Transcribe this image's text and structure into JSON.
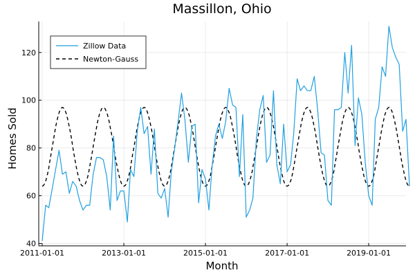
{
  "chart_data": {
    "type": "line",
    "title": "Massillon, Ohio",
    "xlabel": "Month",
    "ylabel": "Homes Sold",
    "x_axis": {
      "type": "date",
      "range": [
        "2010-12-01",
        "2019-12-01"
      ],
      "ticks": [
        "2011-01-01",
        "2013-01-01",
        "2015-01-01",
        "2017-01-01",
        "2019-01-01"
      ]
    },
    "y_axis": {
      "range": [
        39,
        133
      ],
      "ticks": [
        40,
        60,
        80,
        100,
        120
      ]
    },
    "grid": true,
    "legend": {
      "position": "top-left",
      "entries": [
        "Zillow Data",
        "Newton-Gauss"
      ]
    },
    "series": [
      {
        "name": "Zillow Data",
        "color": "#1f9fe0",
        "style": "solid",
        "points": [
          [
            "2011-01-01",
            41
          ],
          [
            "2011-02-01",
            56
          ],
          [
            "2011-03-01",
            55
          ],
          [
            "2011-04-01",
            63
          ],
          [
            "2011-05-01",
            71
          ],
          [
            "2011-06-01",
            79
          ],
          [
            "2011-07-01",
            69
          ],
          [
            "2011-08-01",
            70
          ],
          [
            "2011-09-01",
            61
          ],
          [
            "2011-10-01",
            66
          ],
          [
            "2011-11-01",
            64
          ],
          [
            "2011-12-01",
            58
          ],
          [
            "2012-01-01",
            54
          ],
          [
            "2012-02-01",
            56
          ],
          [
            "2012-03-01",
            56
          ],
          [
            "2012-04-01",
            69
          ],
          [
            "2012-05-01",
            76
          ],
          [
            "2012-06-01",
            76
          ],
          [
            "2012-07-01",
            75
          ],
          [
            "2012-08-01",
            68
          ],
          [
            "2012-09-01",
            54
          ],
          [
            "2012-10-01",
            85
          ],
          [
            "2012-11-01",
            58
          ],
          [
            "2012-12-01",
            62
          ],
          [
            "2013-01-01",
            62
          ],
          [
            "2013-02-01",
            49
          ],
          [
            "2013-03-01",
            71
          ],
          [
            "2013-04-01",
            68
          ],
          [
            "2013-05-01",
            87
          ],
          [
            "2013-06-01",
            97
          ],
          [
            "2013-07-01",
            86
          ],
          [
            "2013-08-01",
            89
          ],
          [
            "2013-09-01",
            69
          ],
          [
            "2013-10-01",
            88
          ],
          [
            "2013-11-01",
            61
          ],
          [
            "2013-12-01",
            59
          ],
          [
            "2014-01-01",
            63
          ],
          [
            "2014-02-01",
            51
          ],
          [
            "2014-03-01",
            70
          ],
          [
            "2014-04-01",
            80
          ],
          [
            "2014-05-01",
            91
          ],
          [
            "2014-06-01",
            103
          ],
          [
            "2014-07-01",
            92
          ],
          [
            "2014-08-01",
            74
          ],
          [
            "2014-09-01",
            89
          ],
          [
            "2014-10-01",
            90
          ],
          [
            "2014-11-01",
            57
          ],
          [
            "2014-12-01",
            71
          ],
          [
            "2015-01-01",
            67
          ],
          [
            "2015-02-01",
            54
          ],
          [
            "2015-03-01",
            72
          ],
          [
            "2015-04-01",
            85
          ],
          [
            "2015-05-01",
            90
          ],
          [
            "2015-06-01",
            84
          ],
          [
            "2015-07-01",
            91
          ],
          [
            "2015-08-01",
            105
          ],
          [
            "2015-09-01",
            98
          ],
          [
            "2015-10-01",
            97
          ],
          [
            "2015-11-01",
            68
          ],
          [
            "2015-12-01",
            94
          ],
          [
            "2016-01-01",
            51
          ],
          [
            "2016-02-01",
            54
          ],
          [
            "2016-03-01",
            59
          ],
          [
            "2016-04-01",
            84
          ],
          [
            "2016-05-01",
            96
          ],
          [
            "2016-06-01",
            102
          ],
          [
            "2016-07-01",
            74
          ],
          [
            "2016-08-01",
            77
          ],
          [
            "2016-09-01",
            104
          ],
          [
            "2016-10-01",
            73
          ],
          [
            "2016-11-01",
            65
          ],
          [
            "2016-12-01",
            90
          ],
          [
            "2017-01-01",
            70
          ],
          [
            "2017-02-01",
            73
          ],
          [
            "2017-03-01",
            86
          ],
          [
            "2017-04-01",
            109
          ],
          [
            "2017-05-01",
            104
          ],
          [
            "2017-06-01",
            106
          ],
          [
            "2017-07-01",
            104
          ],
          [
            "2017-08-01",
            104
          ],
          [
            "2017-09-01",
            110
          ],
          [
            "2017-10-01",
            96
          ],
          [
            "2017-11-01",
            78
          ],
          [
            "2017-12-01",
            77
          ],
          [
            "2018-01-01",
            58
          ],
          [
            "2018-02-01",
            56
          ],
          [
            "2018-03-01",
            96
          ],
          [
            "2018-04-01",
            96
          ],
          [
            "2018-05-01",
            97
          ],
          [
            "2018-06-01",
            120
          ],
          [
            "2018-07-01",
            103
          ],
          [
            "2018-08-01",
            123
          ],
          [
            "2018-09-01",
            81
          ],
          [
            "2018-10-01",
            101
          ],
          [
            "2018-11-01",
            94
          ],
          [
            "2018-12-01",
            74
          ],
          [
            "2019-01-01",
            60
          ],
          [
            "2019-02-01",
            56
          ],
          [
            "2019-03-01",
            92
          ],
          [
            "2019-04-01",
            97
          ],
          [
            "2019-05-01",
            114
          ],
          [
            "2019-06-01",
            110
          ],
          [
            "2019-07-01",
            131
          ],
          [
            "2019-08-01",
            122
          ],
          [
            "2019-09-01",
            118
          ],
          [
            "2019-10-01",
            115
          ],
          [
            "2019-11-01",
            87
          ],
          [
            "2019-12-01",
            92
          ],
          [
            "2020-01-01",
            64
          ]
        ]
      },
      {
        "name": "Newton-Gauss",
        "color": "#000000",
        "style": "dashed",
        "model": {
          "form": "sinusoid",
          "mean": 80.5,
          "amplitude": 16.5,
          "period_months": 12,
          "peak_month": 7
        },
        "x_range": [
          "2011-01-01",
          "2020-01-01"
        ]
      }
    ]
  }
}
